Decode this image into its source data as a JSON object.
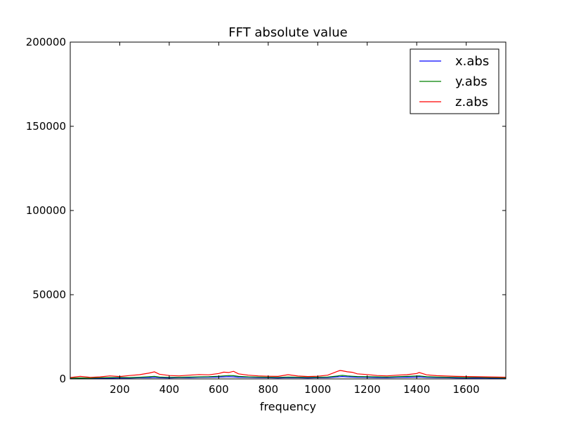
{
  "chart_data": {
    "type": "line",
    "title": "FFT absolute value",
    "xlabel": "frequency",
    "ylabel": "",
    "xlim": [
      0,
      1760
    ],
    "ylim": [
      0,
      200000
    ],
    "xticks": [
      200,
      400,
      600,
      800,
      1000,
      1200,
      1400,
      1600
    ],
    "xtick_labels": [
      "200",
      "400",
      "600",
      "800",
      "1000",
      "1200",
      "1400",
      "1600"
    ],
    "yticks": [
      0,
      50000,
      100000,
      150000,
      200000
    ],
    "ytick_labels": [
      "0",
      "50000",
      "100000",
      "150000",
      "200000"
    ],
    "legend_position": "top-right",
    "grid": false,
    "x": [
      0,
      40,
      80,
      120,
      160,
      200,
      240,
      280,
      320,
      340,
      360,
      400,
      440,
      480,
      520,
      560,
      600,
      620,
      640,
      660,
      680,
      720,
      760,
      800,
      840,
      880,
      920,
      960,
      1000,
      1040,
      1080,
      1090,
      1100,
      1120,
      1140,
      1160,
      1200,
      1240,
      1280,
      1320,
      1360,
      1400,
      1410,
      1440,
      1480,
      1520,
      1560,
      1600,
      1640,
      1680,
      1720,
      1760
    ],
    "series": [
      {
        "name": "x.abs",
        "color": "#0000ff",
        "values": [
          300,
          400,
          300,
          500,
          400,
          600,
          500,
          700,
          800,
          900,
          700,
          600,
          800,
          700,
          900,
          1000,
          1100,
          1200,
          1300,
          1200,
          1000,
          900,
          800,
          700,
          600,
          800,
          700,
          600,
          700,
          800,
          1200,
          1300,
          1400,
          1200,
          1100,
          1000,
          900,
          800,
          700,
          900,
          1000,
          1100,
          1200,
          900,
          800,
          700,
          600,
          500,
          600,
          500,
          400,
          300
        ]
      },
      {
        "name": "y.abs",
        "color": "#008000",
        "values": [
          500,
          600,
          500,
          700,
          800,
          900,
          800,
          1000,
          1300,
          1500,
          1100,
          900,
          1000,
          1100,
          1200,
          1300,
          1600,
          1800,
          2000,
          1900,
          1500,
          1200,
          1100,
          1000,
          900,
          1100,
          1000,
          900,
          1000,
          1100,
          1700,
          2000,
          2100,
          1800,
          1600,
          1400,
          1300,
          1200,
          1100,
          1300,
          1500,
          1700,
          1800,
          1300,
          1100,
          1000,
          900,
          800,
          900,
          800,
          700,
          600
        ]
      },
      {
        "name": "z.abs",
        "color": "#ff0000",
        "values": [
          800,
          1500,
          900,
          1200,
          1800,
          1400,
          2000,
          2500,
          3500,
          4200,
          2800,
          2000,
          1800,
          2200,
          2600,
          2400,
          3200,
          4000,
          3800,
          4500,
          3000,
          2200,
          1800,
          1600,
          1500,
          2500,
          1700,
          1400,
          1600,
          2200,
          4500,
          5000,
          4800,
          4200,
          3900,
          3000,
          2600,
          2000,
          1800,
          2200,
          2500,
          3200,
          3800,
          2400,
          1900,
          1700,
          1500,
          1400,
          1300,
          1200,
          1100,
          1000
        ]
      }
    ]
  }
}
